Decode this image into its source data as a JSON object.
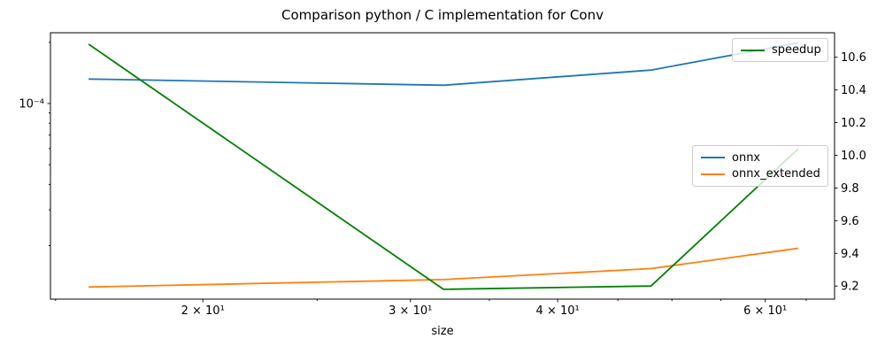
{
  "chart_data": {
    "type": "line",
    "title": "Comparison python / C implementation for Conv",
    "xlabel": "size",
    "ylabel_left": "",
    "x_scale": "log",
    "y_scale_left": "log",
    "y_scale_right": "linear",
    "x": [
      16,
      32,
      48,
      64
    ],
    "series": [
      {
        "name": "onnx",
        "axis": "left",
        "color": "#1f77b4",
        "values": [
          0.000132,
          0.000123,
          0.000146,
          0.000199
        ]
      },
      {
        "name": "onnx_extended",
        "axis": "left",
        "color": "#ff7f0e",
        "values": [
          1.25e-05,
          1.36e-05,
          1.54e-05,
          1.94e-05
        ]
      },
      {
        "name": "speedup",
        "axis": "right",
        "color": "#008000",
        "values": [
          10.68,
          9.18,
          9.2,
          10.04
        ]
      }
    ],
    "xlim": [
      14.85,
      68.7
    ],
    "ylim_left": [
      1.09e-05,
      0.000223
    ],
    "ylim_right": [
      9.12,
      10.75
    ],
    "x_ticks": {
      "values": [
        20,
        30,
        40,
        60
      ],
      "labels": [
        "2 × 10¹",
        "3 × 10¹",
        "4 × 10¹",
        "6 × 10¹"
      ],
      "minor": [
        15,
        25,
        35,
        45,
        50,
        55,
        65
      ]
    },
    "y_ticks_left": {
      "values": [
        0.0001
      ],
      "labels": [
        "10⁻⁴"
      ],
      "minor": [
        0.0002,
        9e-05,
        8e-05,
        7e-05,
        6e-05,
        5e-05,
        4e-05,
        3e-05,
        2e-05
      ]
    },
    "y_ticks_right": {
      "values": [
        9.2,
        9.4,
        9.6,
        9.8,
        10.0,
        10.2,
        10.4,
        10.6
      ],
      "labels": [
        "9.2",
        "9.4",
        "9.6",
        "9.8",
        "10.0",
        "10.2",
        "10.4",
        "10.6"
      ]
    },
    "grid": false,
    "legends": [
      {
        "id": "speedup-legend",
        "entries": [
          {
            "label": "speedup",
            "color": "#008000"
          }
        ]
      },
      {
        "id": "main-legend",
        "entries": [
          {
            "label": "onnx",
            "color": "#1f77b4"
          },
          {
            "label": "onnx_extended",
            "color": "#ff7f0e"
          }
        ]
      }
    ]
  }
}
